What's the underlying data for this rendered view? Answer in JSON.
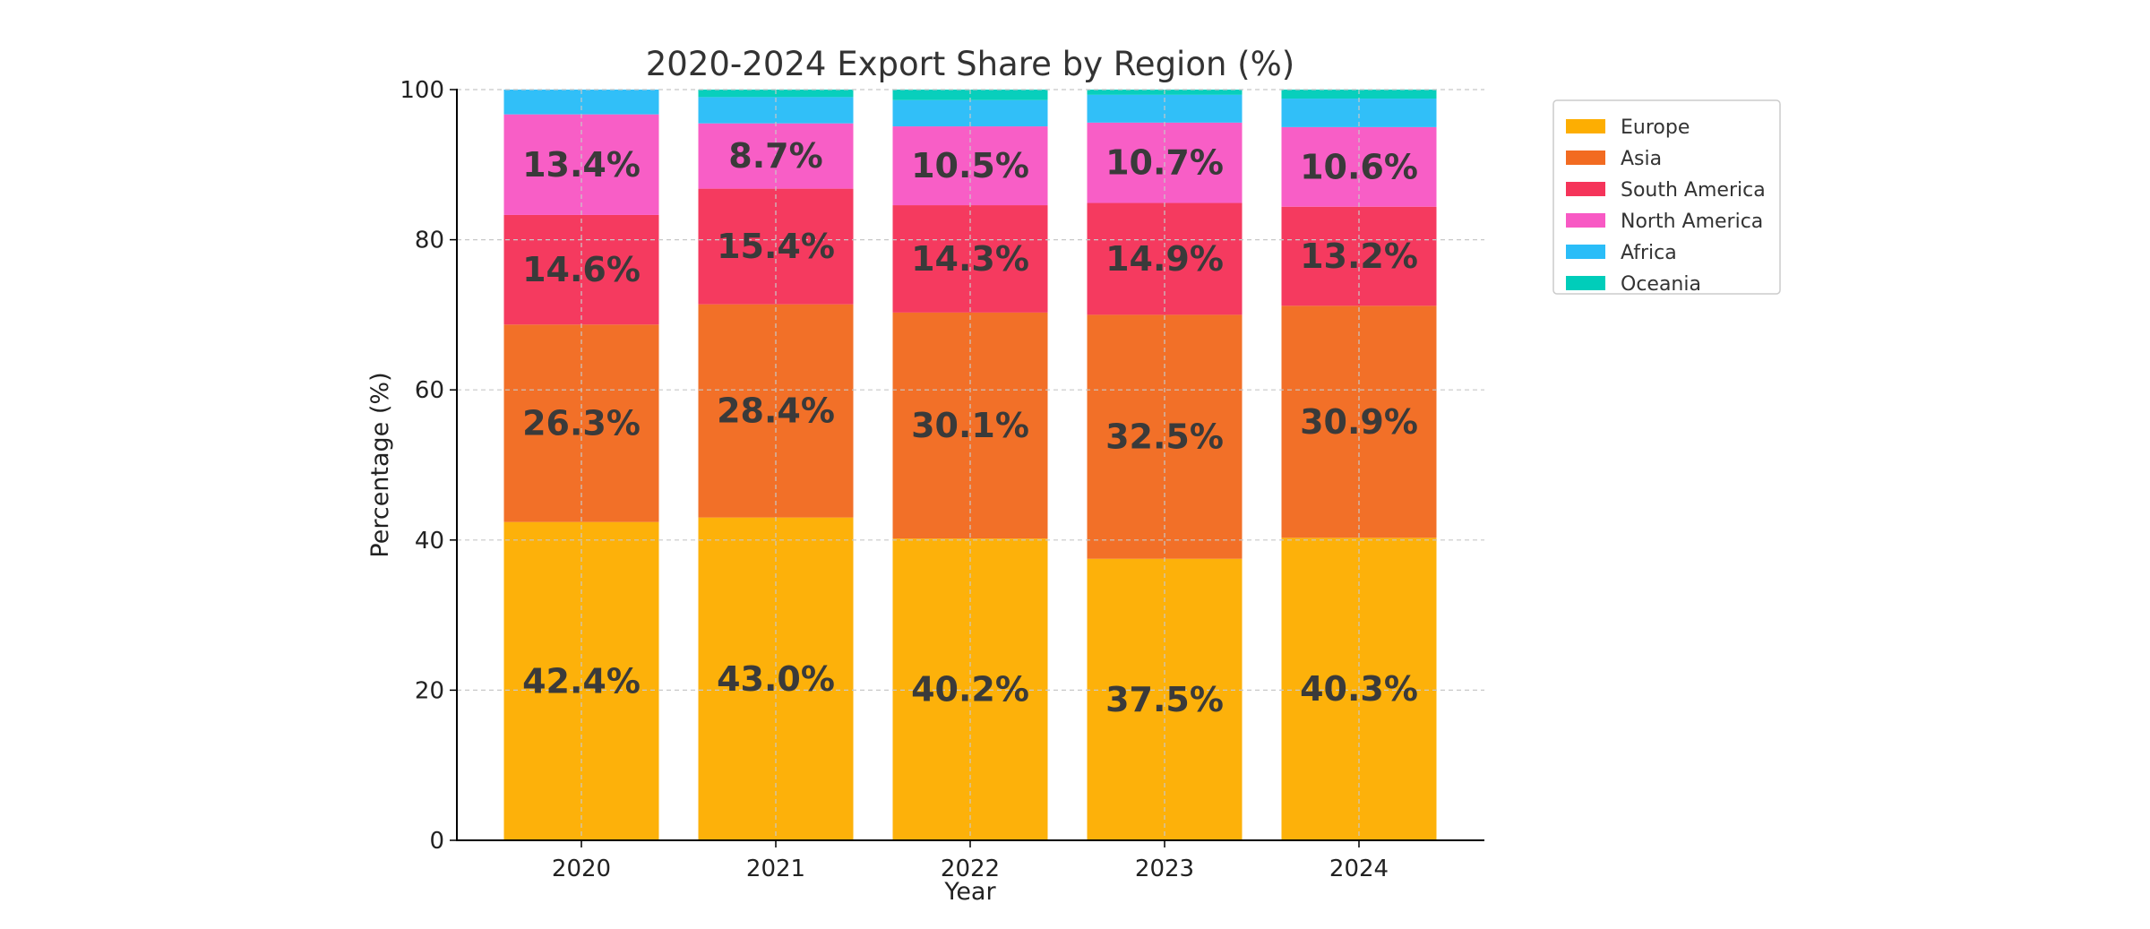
{
  "chart_data": {
    "type": "bar",
    "stacked": true,
    "title": "2020-2024 Export Share by Region (%)",
    "xlabel": "Year",
    "ylabel": "Percentage (%)",
    "ylim": [
      0,
      100
    ],
    "yticks": [
      0,
      20,
      40,
      60,
      80,
      100
    ],
    "grid": true,
    "legend_position": "outside-top-right",
    "categories": [
      "2020",
      "2021",
      "2022",
      "2023",
      "2024"
    ],
    "series": [
      {
        "name": "Europe",
        "color": "#FDAE02",
        "values": [
          42.4,
          43.0,
          40.2,
          37.5,
          40.3
        ],
        "labels": [
          "42.4%",
          "43.0%",
          "40.2%",
          "37.5%",
          "40.3%"
        ]
      },
      {
        "name": "Asia",
        "color": "#F26B21",
        "values": [
          26.3,
          28.4,
          30.1,
          32.5,
          30.9
        ],
        "labels": [
          "26.3%",
          "28.4%",
          "30.1%",
          "32.5%",
          "30.9%"
        ]
      },
      {
        "name": "South America",
        "color": "#F5345A",
        "values": [
          14.6,
          15.4,
          14.3,
          14.9,
          13.2
        ],
        "labels": [
          "14.6%",
          "15.4%",
          "14.3%",
          "14.9%",
          "13.2%"
        ]
      },
      {
        "name": "North America",
        "color": "#F859C4",
        "values": [
          13.4,
          8.7,
          10.5,
          10.7,
          10.6
        ],
        "labels": [
          "13.4%",
          "8.7%",
          "10.5%",
          "10.7%",
          "10.6%"
        ]
      },
      {
        "name": "Africa",
        "color": "#2ABDF8",
        "values": [
          3.3,
          3.5,
          3.5,
          3.7,
          3.8
        ],
        "labels": null
      },
      {
        "name": "Oceania",
        "color": "#00CDBA",
        "values": [
          0.0,
          1.0,
          1.4,
          0.7,
          1.2
        ],
        "labels": null
      }
    ]
  }
}
